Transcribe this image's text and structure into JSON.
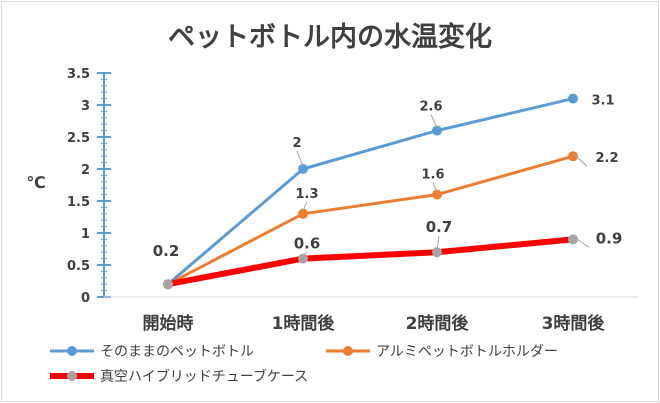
{
  "chart_data": {
    "type": "line",
    "title": "ペットボトル内の水温変化",
    "ylabel": "℃",
    "xlabel": "",
    "categories": [
      "開始時",
      "1時間後",
      "2時間後",
      "3時間後"
    ],
    "ylim": [
      0,
      3.5
    ],
    "yticks": [
      0,
      0.5,
      1,
      1.5,
      2,
      2.5,
      3,
      3.5
    ],
    "ytick_labels": [
      "0",
      "0.5",
      "1",
      "1.5",
      "2",
      "2.5",
      "3",
      "3.5"
    ],
    "grid": false,
    "legend_position": "bottom",
    "series": [
      {
        "name": "そのままのペットボトル",
        "values": [
          0.2,
          2,
          2.6,
          3.1
        ],
        "labels": [
          "",
          "2",
          "2.6",
          "3.1"
        ],
        "color": "#5b9bd5",
        "marker_color": "#5b9bd5",
        "emphasis": "normal"
      },
      {
        "name": "アルミペットボトルホルダー",
        "values": [
          0.2,
          1.3,
          1.6,
          2.2
        ],
        "labels": [
          "",
          "1.3",
          "1.6",
          "2.2"
        ],
        "color": "#ed7d31",
        "marker_color": "#ed7d31",
        "emphasis": "normal"
      },
      {
        "name": "真空ハイブリッドチューブケース",
        "values": [
          0.2,
          0.6,
          0.7,
          0.9
        ],
        "labels": [
          "0.2",
          "0.6",
          "0.7",
          "0.9"
        ],
        "color": "#ff0000",
        "marker_color": "#a5a5a5",
        "emphasis": "bold"
      }
    ],
    "axis_color": "#5b9bd5"
  }
}
